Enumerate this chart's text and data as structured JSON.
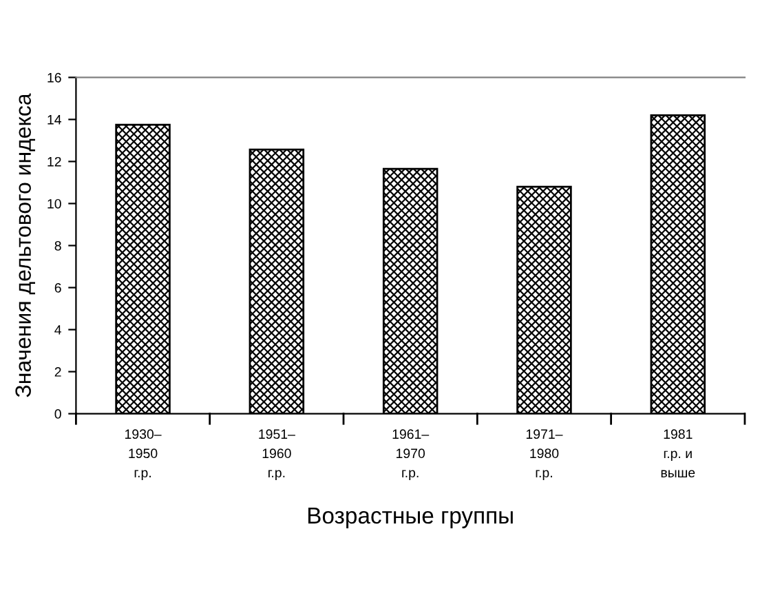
{
  "chart_data": {
    "type": "bar",
    "xlabel": "Возрастные группы",
    "ylabel": "Значения дельтового индекса",
    "categories": [
      "1930–\n1950\nг.р.",
      "1951–\n1960\nг.р.",
      "1961–\n1970\nг.р.",
      "1971–\n1980\nг.р.",
      "1981\nг.р. и\nвыше"
    ],
    "values": [
      13.75,
      12.57,
      11.65,
      10.8,
      14.2
    ],
    "color": "#000000",
    "ylim": [
      0,
      16
    ],
    "yticks": [
      0,
      2,
      4,
      6,
      8,
      10,
      12,
      14,
      16
    ],
    "grid": false,
    "legend": false
  }
}
